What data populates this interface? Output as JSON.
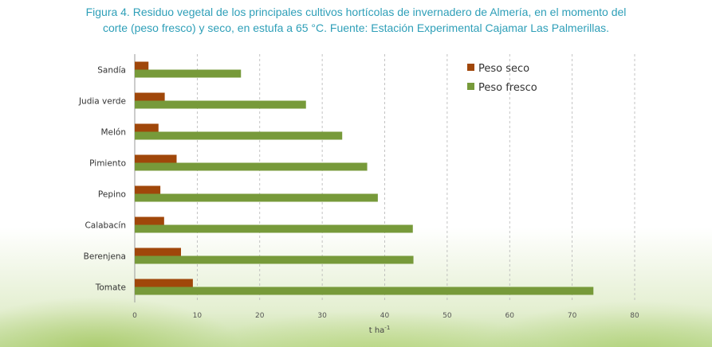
{
  "caption": {
    "line1": "Figura 4. Residuo vegetal de los principales cultivos hortícolas de invernadero de Almería, en el momento del",
    "line2": "corte (peso fresco) y seco, en estufa a 65 °C. Fuente: Estación Experimental Cajamar Las Palmerillas."
  },
  "colors": {
    "caption": "#2e9fb8",
    "peso_seco": "#a0470a",
    "peso_fresco": "#779a3a"
  },
  "chart_data": {
    "type": "bar",
    "orientation": "horizontal",
    "categories": [
      "Sandía",
      "Judia verde",
      "Melón",
      "Pimiento",
      "Pepino",
      "Calabacín",
      "Berenjena",
      "Tomate"
    ],
    "series": [
      {
        "name": "Peso seco",
        "values": [
          2.2,
          4.8,
          3.8,
          6.7,
          4.1,
          4.7,
          7.4,
          9.3
        ]
      },
      {
        "name": "Peso fresco",
        "values": [
          17.0,
          27.4,
          33.2,
          37.2,
          38.9,
          44.5,
          44.6,
          73.4
        ]
      }
    ],
    "xlabel": "t ha",
    "xlabel_sup": "-1",
    "xlim": [
      0,
      80
    ],
    "xticks": [
      "0",
      "10",
      "20",
      "30",
      "40",
      "50",
      "60",
      "70",
      "80"
    ],
    "grid": "vertical dashed",
    "legend": "top-right"
  }
}
